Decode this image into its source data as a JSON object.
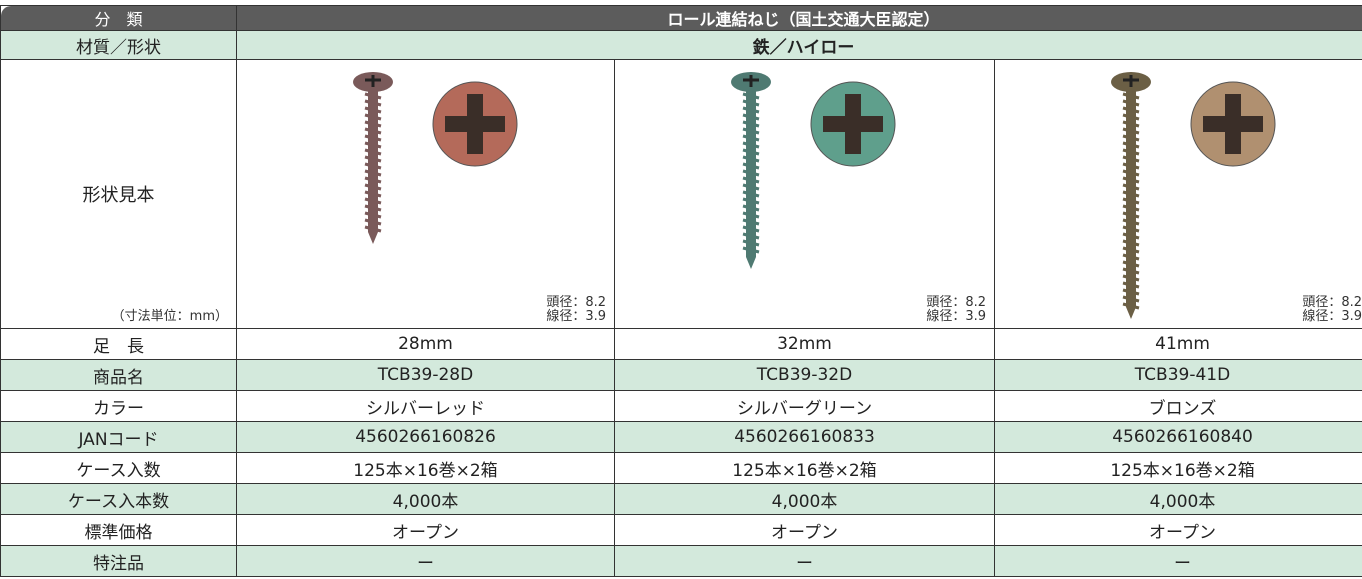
{
  "table": {
    "header": [
      "分　類",
      "ロール連結ねじ（国土交通大臣認定）"
    ],
    "material": [
      "材質／形状",
      "鉄／ハイロー"
    ],
    "sample": {
      "label": "形状見本",
      "note": "（寸法単位：mm）",
      "specs": [
        [
          "頭径：8.2",
          "線径：3.9"
        ],
        [
          "頭径：8.2",
          "線径：3.9"
        ],
        [
          "頭径：8.2",
          "線径：3.9"
        ]
      ]
    },
    "rows": [
      [
        "足　長",
        "28mm",
        "32mm",
        "41mm"
      ],
      [
        "商品名",
        "TCB39-28D",
        "TCB39-32D",
        "TCB39-41D"
      ],
      [
        "カラー",
        "シルバーレッド",
        "シルバーグリーン",
        "ブロンズ"
      ],
      [
        "JANコード",
        "4560266160826",
        "4560266160833",
        "4560266160840"
      ],
      [
        "ケース入数",
        "125本×16巻×2箱",
        "125本×16巻×2箱",
        "125本×16巻×2箱"
      ],
      [
        "ケース入本数",
        "4,000本",
        "4,000本",
        "4,000本"
      ],
      [
        "標準価格",
        "オープン",
        "オープン",
        "オープン"
      ],
      [
        "特注品",
        "ー",
        "ー",
        "ー"
      ]
    ]
  }
}
